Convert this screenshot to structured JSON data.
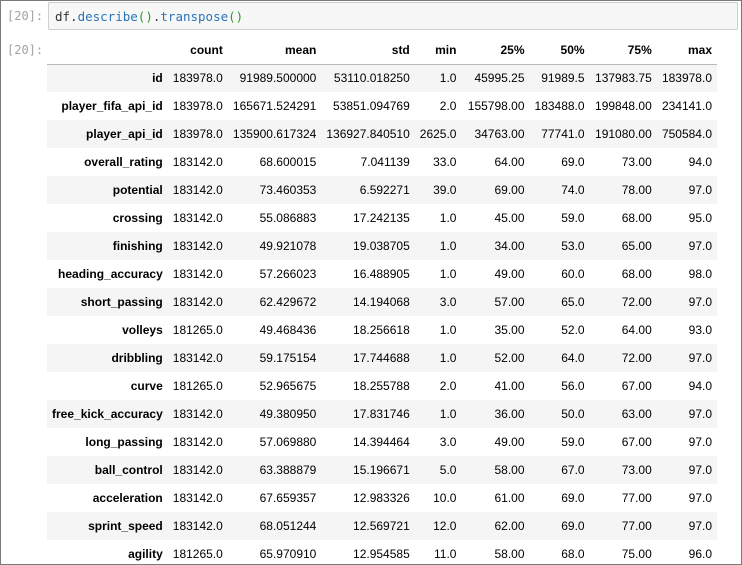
{
  "input_cell": {
    "prompt": "[20]:",
    "code_prefix": "df.",
    "code_fn1": "describe",
    "code_paren1": "()",
    "code_dot": ".",
    "code_fn2": "transpose",
    "code_paren2": "()"
  },
  "output_cell": {
    "prompt": "[20]:"
  },
  "table": {
    "columns": [
      "count",
      "mean",
      "std",
      "min",
      "25%",
      "50%",
      "75%",
      "max"
    ],
    "rows": [
      {
        "name": "id",
        "values": [
          "183978.0",
          "91989.500000",
          "53110.018250",
          "1.0",
          "45995.25",
          "91989.5",
          "137983.75",
          "183978.0"
        ]
      },
      {
        "name": "player_fifa_api_id",
        "values": [
          "183978.0",
          "165671.524291",
          "53851.094769",
          "2.0",
          "155798.00",
          "183488.0",
          "199848.00",
          "234141.0"
        ]
      },
      {
        "name": "player_api_id",
        "values": [
          "183978.0",
          "135900.617324",
          "136927.840510",
          "2625.0",
          "34763.00",
          "77741.0",
          "191080.00",
          "750584.0"
        ]
      },
      {
        "name": "overall_rating",
        "values": [
          "183142.0",
          "68.600015",
          "7.041139",
          "33.0",
          "64.00",
          "69.0",
          "73.00",
          "94.0"
        ]
      },
      {
        "name": "potential",
        "values": [
          "183142.0",
          "73.460353",
          "6.592271",
          "39.0",
          "69.00",
          "74.0",
          "78.00",
          "97.0"
        ]
      },
      {
        "name": "crossing",
        "values": [
          "183142.0",
          "55.086883",
          "17.242135",
          "1.0",
          "45.00",
          "59.0",
          "68.00",
          "95.0"
        ]
      },
      {
        "name": "finishing",
        "values": [
          "183142.0",
          "49.921078",
          "19.038705",
          "1.0",
          "34.00",
          "53.0",
          "65.00",
          "97.0"
        ]
      },
      {
        "name": "heading_accuracy",
        "values": [
          "183142.0",
          "57.266023",
          "16.488905",
          "1.0",
          "49.00",
          "60.0",
          "68.00",
          "98.0"
        ]
      },
      {
        "name": "short_passing",
        "values": [
          "183142.0",
          "62.429672",
          "14.194068",
          "3.0",
          "57.00",
          "65.0",
          "72.00",
          "97.0"
        ]
      },
      {
        "name": "volleys",
        "values": [
          "181265.0",
          "49.468436",
          "18.256618",
          "1.0",
          "35.00",
          "52.0",
          "64.00",
          "93.0"
        ]
      },
      {
        "name": "dribbling",
        "values": [
          "183142.0",
          "59.175154",
          "17.744688",
          "1.0",
          "52.00",
          "64.0",
          "72.00",
          "97.0"
        ]
      },
      {
        "name": "curve",
        "values": [
          "181265.0",
          "52.965675",
          "18.255788",
          "2.0",
          "41.00",
          "56.0",
          "67.00",
          "94.0"
        ]
      },
      {
        "name": "free_kick_accuracy",
        "values": [
          "183142.0",
          "49.380950",
          "17.831746",
          "1.0",
          "36.00",
          "50.0",
          "63.00",
          "97.0"
        ]
      },
      {
        "name": "long_passing",
        "values": [
          "183142.0",
          "57.069880",
          "14.394464",
          "3.0",
          "49.00",
          "59.0",
          "67.00",
          "97.0"
        ]
      },
      {
        "name": "ball_control",
        "values": [
          "183142.0",
          "63.388879",
          "15.196671",
          "5.0",
          "58.00",
          "67.0",
          "73.00",
          "97.0"
        ]
      },
      {
        "name": "acceleration",
        "values": [
          "183142.0",
          "67.659357",
          "12.983326",
          "10.0",
          "61.00",
          "69.0",
          "77.00",
          "97.0"
        ]
      },
      {
        "name": "sprint_speed",
        "values": [
          "183142.0",
          "68.051244",
          "12.569721",
          "12.0",
          "62.00",
          "69.0",
          "77.00",
          "97.0"
        ]
      },
      {
        "name": "agility",
        "values": [
          "181265.0",
          "65.970910",
          "12.954585",
          "11.0",
          "58.00",
          "68.0",
          "75.00",
          "96.0"
        ]
      }
    ]
  }
}
